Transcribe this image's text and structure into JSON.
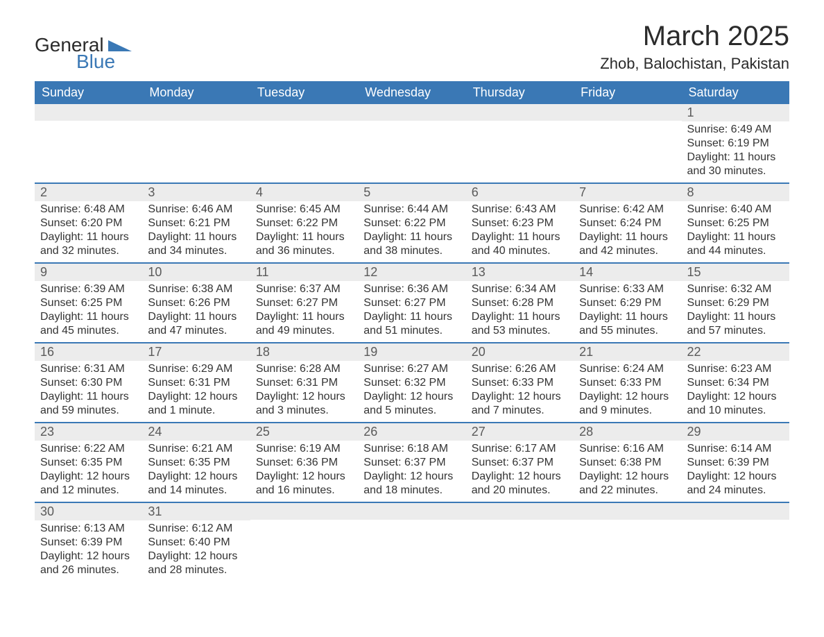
{
  "logo": {
    "text1": "General",
    "text2": "Blue"
  },
  "title": "March 2025",
  "location": "Zhob, Balochistan, Pakistan",
  "colors": {
    "header_bg": "#3a78b5",
    "header_text": "#ffffff",
    "daynum_bg": "#ececec",
    "daynum_text": "#5a5a5a",
    "body_text": "#333333",
    "row_border": "#3a78b5",
    "logo_accent": "#3a78b5"
  },
  "weekdays": [
    "Sunday",
    "Monday",
    "Tuesday",
    "Wednesday",
    "Thursday",
    "Friday",
    "Saturday"
  ],
  "labels": {
    "sunrise": "Sunrise: ",
    "sunset": "Sunset: ",
    "daylight": "Daylight: "
  },
  "weeks": [
    [
      null,
      null,
      null,
      null,
      null,
      null,
      {
        "n": "1",
        "sr": "6:49 AM",
        "ss": "6:19 PM",
        "dl": "11 hours and 30 minutes."
      }
    ],
    [
      {
        "n": "2",
        "sr": "6:48 AM",
        "ss": "6:20 PM",
        "dl": "11 hours and 32 minutes."
      },
      {
        "n": "3",
        "sr": "6:46 AM",
        "ss": "6:21 PM",
        "dl": "11 hours and 34 minutes."
      },
      {
        "n": "4",
        "sr": "6:45 AM",
        "ss": "6:22 PM",
        "dl": "11 hours and 36 minutes."
      },
      {
        "n": "5",
        "sr": "6:44 AM",
        "ss": "6:22 PM",
        "dl": "11 hours and 38 minutes."
      },
      {
        "n": "6",
        "sr": "6:43 AM",
        "ss": "6:23 PM",
        "dl": "11 hours and 40 minutes."
      },
      {
        "n": "7",
        "sr": "6:42 AM",
        "ss": "6:24 PM",
        "dl": "11 hours and 42 minutes."
      },
      {
        "n": "8",
        "sr": "6:40 AM",
        "ss": "6:25 PM",
        "dl": "11 hours and 44 minutes."
      }
    ],
    [
      {
        "n": "9",
        "sr": "6:39 AM",
        "ss": "6:25 PM",
        "dl": "11 hours and 45 minutes."
      },
      {
        "n": "10",
        "sr": "6:38 AM",
        "ss": "6:26 PM",
        "dl": "11 hours and 47 minutes."
      },
      {
        "n": "11",
        "sr": "6:37 AM",
        "ss": "6:27 PM",
        "dl": "11 hours and 49 minutes."
      },
      {
        "n": "12",
        "sr": "6:36 AM",
        "ss": "6:27 PM",
        "dl": "11 hours and 51 minutes."
      },
      {
        "n": "13",
        "sr": "6:34 AM",
        "ss": "6:28 PM",
        "dl": "11 hours and 53 minutes."
      },
      {
        "n": "14",
        "sr": "6:33 AM",
        "ss": "6:29 PM",
        "dl": "11 hours and 55 minutes."
      },
      {
        "n": "15",
        "sr": "6:32 AM",
        "ss": "6:29 PM",
        "dl": "11 hours and 57 minutes."
      }
    ],
    [
      {
        "n": "16",
        "sr": "6:31 AM",
        "ss": "6:30 PM",
        "dl": "11 hours and 59 minutes."
      },
      {
        "n": "17",
        "sr": "6:29 AM",
        "ss": "6:31 PM",
        "dl": "12 hours and 1 minute."
      },
      {
        "n": "18",
        "sr": "6:28 AM",
        "ss": "6:31 PM",
        "dl": "12 hours and 3 minutes."
      },
      {
        "n": "19",
        "sr": "6:27 AM",
        "ss": "6:32 PM",
        "dl": "12 hours and 5 minutes."
      },
      {
        "n": "20",
        "sr": "6:26 AM",
        "ss": "6:33 PM",
        "dl": "12 hours and 7 minutes."
      },
      {
        "n": "21",
        "sr": "6:24 AM",
        "ss": "6:33 PM",
        "dl": "12 hours and 9 minutes."
      },
      {
        "n": "22",
        "sr": "6:23 AM",
        "ss": "6:34 PM",
        "dl": "12 hours and 10 minutes."
      }
    ],
    [
      {
        "n": "23",
        "sr": "6:22 AM",
        "ss": "6:35 PM",
        "dl": "12 hours and 12 minutes."
      },
      {
        "n": "24",
        "sr": "6:21 AM",
        "ss": "6:35 PM",
        "dl": "12 hours and 14 minutes."
      },
      {
        "n": "25",
        "sr": "6:19 AM",
        "ss": "6:36 PM",
        "dl": "12 hours and 16 minutes."
      },
      {
        "n": "26",
        "sr": "6:18 AM",
        "ss": "6:37 PM",
        "dl": "12 hours and 18 minutes."
      },
      {
        "n": "27",
        "sr": "6:17 AM",
        "ss": "6:37 PM",
        "dl": "12 hours and 20 minutes."
      },
      {
        "n": "28",
        "sr": "6:16 AM",
        "ss": "6:38 PM",
        "dl": "12 hours and 22 minutes."
      },
      {
        "n": "29",
        "sr": "6:14 AM",
        "ss": "6:39 PM",
        "dl": "12 hours and 24 minutes."
      }
    ],
    [
      {
        "n": "30",
        "sr": "6:13 AM",
        "ss": "6:39 PM",
        "dl": "12 hours and 26 minutes."
      },
      {
        "n": "31",
        "sr": "6:12 AM",
        "ss": "6:40 PM",
        "dl": "12 hours and 28 minutes."
      },
      null,
      null,
      null,
      null,
      null
    ]
  ]
}
